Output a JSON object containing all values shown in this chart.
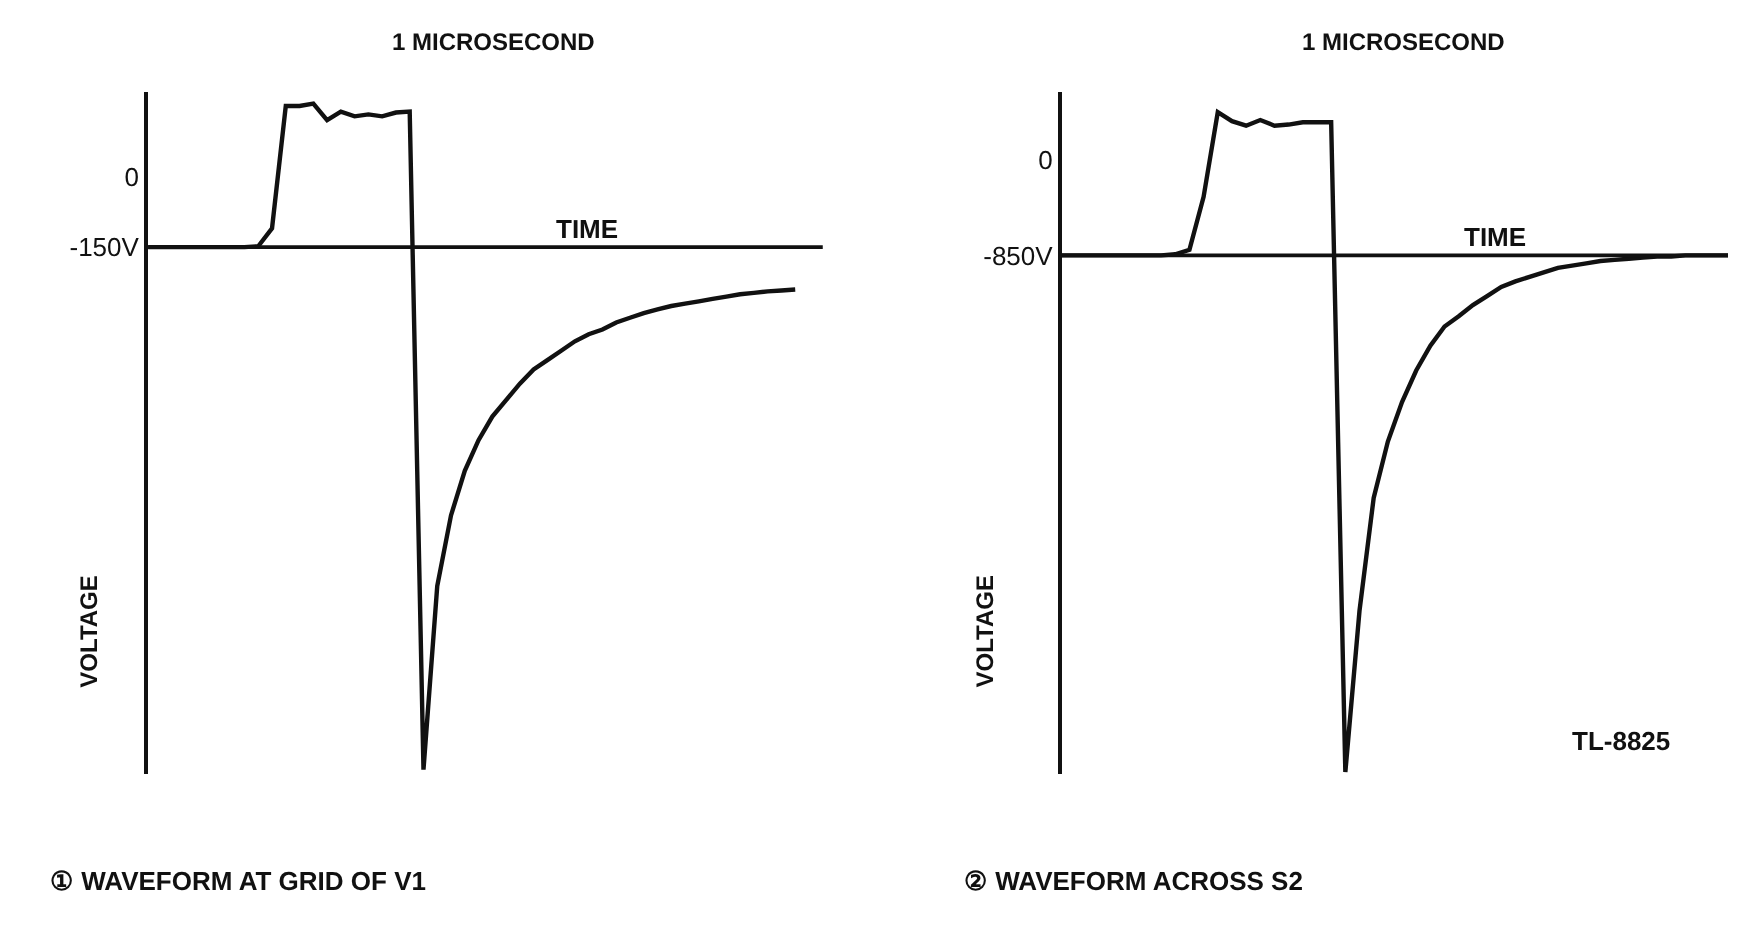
{
  "chart_data": [
    {
      "type": "line",
      "title": "① WAVEFORM AT GRID OF V1",
      "xlabel": "TIME",
      "ylabel": "VOLTAGE",
      "categories": [
        null,
        null,
        null,
        null,
        null,
        null,
        null,
        null,
        null,
        null,
        null,
        null,
        null,
        null,
        null,
        null,
        null,
        null,
        null,
        null,
        null,
        null,
        null,
        null,
        null,
        null,
        null,
        null,
        null,
        null,
        null,
        null,
        null,
        null,
        null,
        null,
        null,
        null,
        null,
        null,
        null,
        null,
        null,
        null,
        null,
        null,
        null,
        null,
        null,
        null
      ],
      "series": [
        {
          "color": "#111111",
          "values": [
            -150,
            -150,
            -150,
            -150,
            -150,
            -150,
            -150,
            -150,
            -148,
            -110,
            150,
            150,
            155,
            120,
            138,
            128,
            132,
            128,
            136,
            138,
            -1260,
            -870,
            -720,
            -625,
            -560,
            -510,
            -475,
            -440,
            -410,
            -390,
            -370,
            -350,
            -335,
            -325,
            -310,
            -300,
            -290,
            -282,
            -275,
            -270,
            -265,
            -260,
            -255,
            -250,
            -247,
            -244,
            -242,
            -240,
            null,
            null
          ]
        }
      ],
      "ylim": [
        -1270,
        180
      ],
      "yticks": [
        {
          "value": 0,
          "label": "0"
        },
        {
          "value": -150,
          "label": "-150V"
        }
      ],
      "tick_labels": "y",
      "marker": "none",
      "line_style": "solid",
      "ref_lines": [
        {
          "axis": "y",
          "value": -150
        }
      ],
      "annotations": [
        "1 MICROSECOND"
      ]
    },
    {
      "type": "line",
      "title": "② WAVEFORM ACROSS S2",
      "xlabel": "TIME",
      "ylabel": "VOLTAGE",
      "categories": [
        null,
        null,
        null,
        null,
        null,
        null,
        null,
        null,
        null,
        null,
        null,
        null,
        null,
        null,
        null,
        null,
        null,
        null,
        null,
        null,
        null,
        null,
        null,
        null,
        null,
        null,
        null,
        null,
        null,
        null,
        null,
        null,
        null,
        null,
        null,
        null,
        null,
        null,
        null,
        null,
        null,
        null,
        null,
        null,
        null,
        null,
        null,
        null
      ],
      "series": [
        {
          "color": "#111111",
          "values": [
            -850,
            -850,
            -850,
            -850,
            -850,
            -850,
            -850,
            -850,
            -840,
            -800,
            -330,
            420,
            340,
            300,
            350,
            300,
            310,
            330,
            330,
            330,
            -5430,
            -4000,
            -3000,
            -2500,
            -2150,
            -1870,
            -1650,
            -1480,
            -1390,
            -1290,
            -1210,
            -1130,
            -1080,
            -1040,
            -1000,
            -960,
            -940,
            -920,
            -900,
            -890,
            -880,
            -870,
            -860,
            -860,
            -850,
            -850,
            -850,
            -850
          ]
        }
      ],
      "ylim": [
        -5450,
        600
      ],
      "yticks": [
        {
          "value": 0,
          "label": "0"
        },
        {
          "value": -850,
          "label": "-850V"
        }
      ],
      "tick_labels": "y",
      "marker": "none",
      "line_style": "solid",
      "ref_lines": [
        {
          "axis": "y",
          "value": -850
        }
      ],
      "annotations": [
        "1 MICROSECOND",
        "TL-8825"
      ]
    }
  ]
}
